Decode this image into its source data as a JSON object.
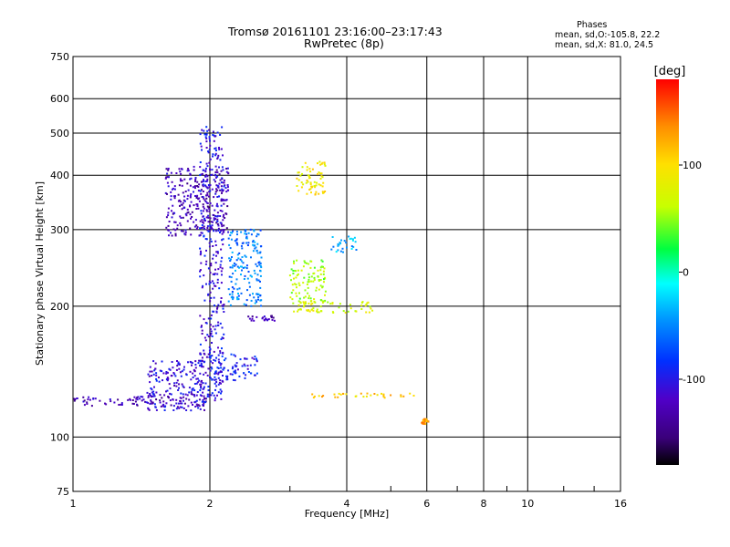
{
  "header": {
    "title": "Tromsø 20161101 23:16:00–23:17:43",
    "subtitle": "RwPretec (8p)"
  },
  "legend_box": {
    "heading": "Phases",
    "line1": "mean, sd,O:-105.8, 22.2",
    "line2": "mean, sd,X:  81.0, 24.5"
  },
  "chart_data": {
    "type": "scatter",
    "xlabel": "Frequency [MHz]",
    "ylabel": "Stationary phase Virtual Height [km]",
    "x_scale": "log",
    "y_scale": "log",
    "xlim": [
      1,
      16
    ],
    "ylim": [
      75,
      750
    ],
    "x_ticks": [
      1,
      2,
      4,
      6,
      8,
      10,
      16
    ],
    "x_ticklabels": [
      "1",
      "2",
      "4",
      "6",
      "8",
      "10",
      "16"
    ],
    "y_ticks": [
      75,
      100,
      200,
      300,
      400,
      500,
      600,
      750
    ],
    "y_ticklabels": [
      "75",
      "100",
      "200",
      "300",
      "400",
      "500",
      "600",
      "750"
    ],
    "grid": true,
    "colorbar": {
      "label": "[deg]",
      "range": [
        -180,
        180
      ],
      "ticks": [
        -100,
        0,
        100
      ],
      "ticklabels": [
        "-100",
        "0",
        "100"
      ]
    },
    "series": [
      {
        "segments": [
          {
            "x": [
              1.0,
              2.0
            ],
            "y": [
              118,
              124
            ],
            "phase": -125
          },
          {
            "x": [
              1.45,
              1.95
            ],
            "y": [
              115,
              150
            ],
            "phase": -110
          },
          {
            "x": [
              1.6,
              2.2
            ],
            "y": [
              290,
              420
            ],
            "phase": -125
          },
          {
            "x": [
              1.9,
              2.15
            ],
            "y": [
              120,
              520
            ],
            "phase": -105
          },
          {
            "x": [
              2.0,
              2.55
            ],
            "y": [
              135,
              155
            ],
            "phase": -95
          },
          {
            "x": [
              2.4,
              2.8
            ],
            "y": [
              185,
              190
            ],
            "phase": -125
          },
          {
            "x": [
              2.2,
              2.6
            ],
            "y": [
              200,
              300
            ],
            "phase": -55
          }
        ]
      },
      {
        "segments": [
          {
            "x": [
              3.1,
              3.6
            ],
            "y": [
              360,
              430
            ],
            "phase": 90
          },
          {
            "x": [
              3.0,
              3.6
            ],
            "y": [
              205,
              255
            ],
            "phase": 55
          },
          {
            "x": [
              3.0,
              4.6
            ],
            "y": [
              193,
              205
            ],
            "phase": 75
          },
          {
            "x": [
              3.7,
              4.2
            ],
            "y": [
              265,
              290
            ],
            "phase": -35
          },
          {
            "x": [
              3.3,
              5.8
            ],
            "y": [
              123,
              126
            ],
            "phase": 110
          },
          {
            "x": [
              5.85,
              6.05
            ],
            "y": [
              107,
              110
            ],
            "phase": 130
          }
        ]
      }
    ]
  }
}
